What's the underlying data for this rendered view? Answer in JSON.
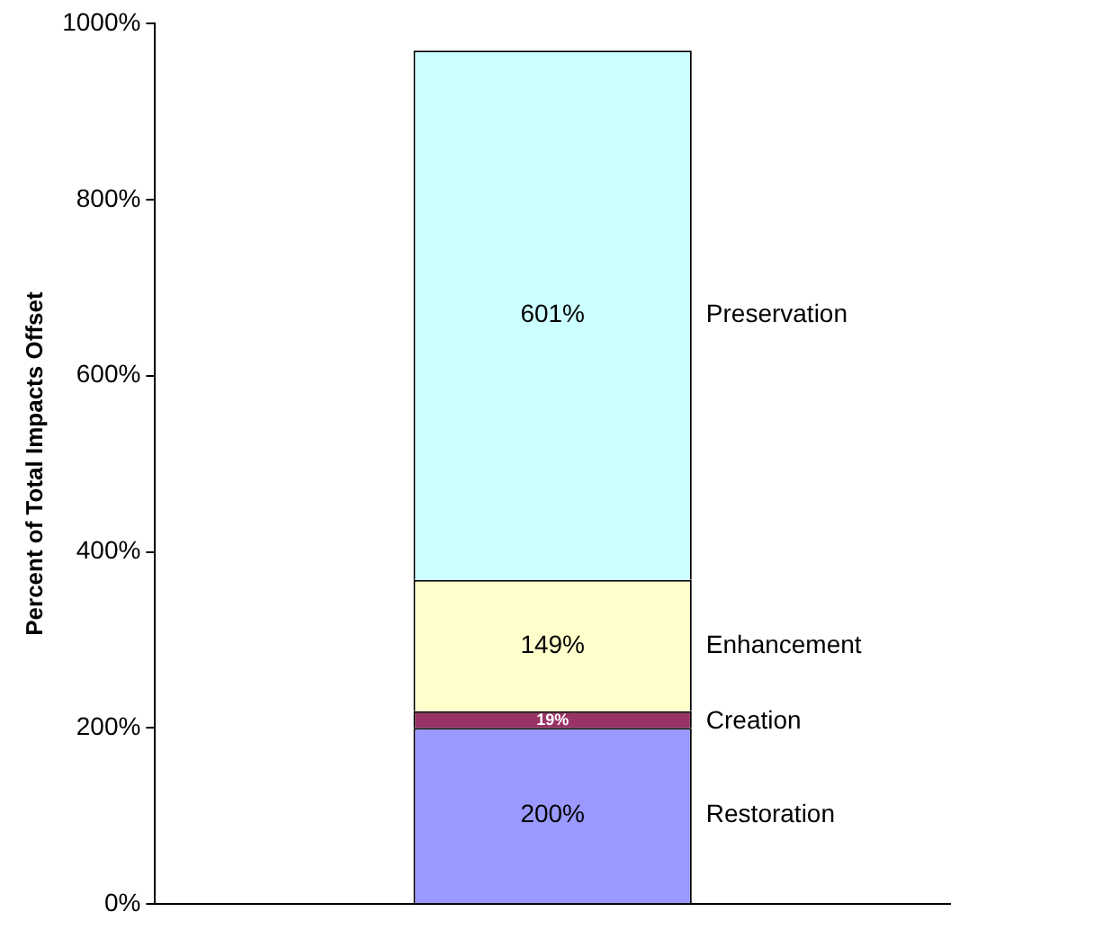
{
  "chart_data": {
    "type": "bar",
    "ylabel": "Percent of Total Impacts Offset",
    "categories": [
      null
    ],
    "stacked": true,
    "series": [
      {
        "name": "Restoration",
        "color": "#9999ff",
        "values": [
          200
        ],
        "value_labels": [
          "200%"
        ]
      },
      {
        "name": "Creation",
        "color": "#993366",
        "values": [
          19
        ],
        "value_labels": [
          "19%"
        ]
      },
      {
        "name": "Enhancement",
        "color": "#ffffcc",
        "values": [
          149
        ],
        "value_labels": [
          "149%"
        ]
      },
      {
        "name": "Preservation",
        "color": "#ccffff",
        "values": [
          601
        ],
        "value_labels": [
          "601%"
        ]
      }
    ],
    "ylim": [
      0,
      1000
    ],
    "yticks": [
      {
        "value": 0,
        "label": "0%"
      },
      {
        "value": 200,
        "label": "200%"
      },
      {
        "value": 400,
        "label": "400%"
      },
      {
        "value": 600,
        "label": "600%"
      },
      {
        "value": 800,
        "label": "800%"
      },
      {
        "value": 1000,
        "label": "1000%"
      }
    ],
    "grid": false,
    "legend": false
  }
}
